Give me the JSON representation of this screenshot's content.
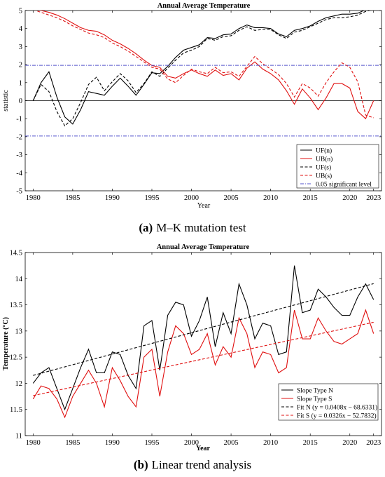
{
  "panel_a": {
    "caption_letter": "(a)",
    "caption_text": "M–K mutation test"
  },
  "panel_b": {
    "caption_letter": "(b)",
    "caption_text": "Linear trend analysis"
  },
  "chart_data": [
    {
      "type": "line",
      "title": "Annual Average Temperature",
      "xlabel": "Year",
      "ylabel": "statistic",
      "xlim": [
        1979,
        2024
      ],
      "ylim": [
        -5,
        5
      ],
      "xticks": [
        1980,
        1985,
        1990,
        1995,
        2000,
        2005,
        2010,
        2015,
        2020,
        2023
      ],
      "yticks": [
        -5,
        -4,
        -3,
        -2,
        -1,
        0,
        1,
        2,
        3,
        4,
        5
      ],
      "grid": false,
      "legend_position": "bottom-right",
      "x": [
        1980,
        1981,
        1982,
        1983,
        1984,
        1985,
        1986,
        1987,
        1988,
        1989,
        1990,
        1991,
        1992,
        1993,
        1994,
        1995,
        1996,
        1997,
        1998,
        1999,
        2000,
        2001,
        2002,
        2003,
        2004,
        2005,
        2006,
        2007,
        2008,
        2009,
        2010,
        2011,
        2012,
        2013,
        2014,
        2015,
        2016,
        2017,
        2018,
        2019,
        2020,
        2021,
        2022,
        2023
      ],
      "series": [
        {
          "name": "UF(n)",
          "color": "#000000",
          "dash": "solid",
          "values": [
            0,
            1.0,
            1.6,
            0.2,
            -0.9,
            -1.3,
            -0.5,
            0.5,
            0.4,
            0.3,
            0.8,
            1.25,
            0.8,
            0.3,
            0.9,
            1.55,
            1.5,
            1.9,
            2.4,
            2.8,
            2.95,
            3.1,
            3.5,
            3.45,
            3.65,
            3.7,
            4.0,
            4.2,
            4.05,
            4.05,
            4.0,
            3.7,
            3.55,
            3.9,
            4.0,
            4.15,
            4.4,
            4.6,
            4.7,
            4.8,
            4.8,
            4.85,
            5.05,
            5.1
          ]
        },
        {
          "name": "UB(n)",
          "color": "#e01010",
          "dash": "solid",
          "values": [
            5.1,
            5.0,
            4.9,
            4.75,
            4.55,
            4.3,
            4.05,
            3.9,
            3.85,
            3.65,
            3.35,
            3.15,
            2.9,
            2.6,
            2.25,
            1.95,
            1.85,
            1.35,
            1.25,
            1.5,
            1.7,
            1.5,
            1.35,
            1.7,
            1.4,
            1.5,
            1.15,
            1.8,
            2.15,
            1.75,
            1.5,
            1.15,
            0.55,
            -0.2,
            0.65,
            0.15,
            -0.5,
            0.15,
            0.95,
            0.95,
            0.7,
            -0.6,
            -1.0,
            0.0
          ]
        },
        {
          "name": "UF(s)",
          "color": "#000000",
          "dash": "dashed",
          "values": [
            0,
            0.9,
            0.5,
            -0.6,
            -1.4,
            -1.0,
            -0.1,
            0.9,
            1.3,
            0.55,
            1.05,
            1.5,
            1.1,
            0.45,
            0.95,
            1.6,
            1.35,
            1.8,
            2.25,
            2.65,
            2.8,
            3.0,
            3.45,
            3.35,
            3.55,
            3.6,
            3.9,
            4.1,
            3.9,
            3.95,
            3.95,
            3.65,
            3.45,
            3.8,
            3.9,
            4.1,
            4.3,
            4.5,
            4.6,
            4.6,
            4.65,
            4.75,
            4.95,
            5.05
          ]
        },
        {
          "name": "UB(s)",
          "color": "#e01010",
          "dash": "dashed",
          "values": [
            5.05,
            4.9,
            4.75,
            4.6,
            4.4,
            4.15,
            3.95,
            3.75,
            3.65,
            3.5,
            3.2,
            3.0,
            2.75,
            2.45,
            2.15,
            1.85,
            1.75,
            1.2,
            1.0,
            1.4,
            1.75,
            1.6,
            1.5,
            1.85,
            1.55,
            1.6,
            1.35,
            1.9,
            2.45,
            2.05,
            1.75,
            1.45,
            0.95,
            0.2,
            0.95,
            0.7,
            0.25,
            1.0,
            1.6,
            2.1,
            1.85,
            1.05,
            -0.8,
            -0.95
          ]
        },
        {
          "name": "0.05 significant level",
          "color": "#5555cc",
          "dash": "dashdot",
          "values_upper": 1.96,
          "values_lower": -1.96
        }
      ],
      "reference_line_y": 0
    },
    {
      "type": "line",
      "title": "Annual Average Temperature",
      "xlabel": "Year",
      "ylabel": "Temperature (°C)",
      "xlim": [
        1979,
        2024
      ],
      "ylim": [
        11,
        14.5
      ],
      "xticks": [
        1980,
        1985,
        1990,
        1995,
        2000,
        2005,
        2010,
        2015,
        2020,
        2023
      ],
      "yticks": [
        11,
        11.5,
        12,
        12.5,
        13,
        13.5,
        14,
        14.5
      ],
      "grid": false,
      "legend_position": "bottom-right",
      "x": [
        1980,
        1981,
        1982,
        1983,
        1984,
        1985,
        1986,
        1987,
        1988,
        1989,
        1990,
        1991,
        1992,
        1993,
        1994,
        1995,
        1996,
        1997,
        1998,
        1999,
        2000,
        2001,
        2002,
        2003,
        2004,
        2005,
        2006,
        2007,
        2008,
        2009,
        2010,
        2011,
        2012,
        2013,
        2014,
        2015,
        2016,
        2017,
        2018,
        2019,
        2020,
        2021,
        2022,
        2023
      ],
      "series": [
        {
          "name": "Slope Type N",
          "color": "#000000",
          "dash": "solid",
          "values": [
            12.0,
            12.2,
            12.3,
            11.9,
            11.5,
            11.9,
            12.3,
            12.65,
            12.2,
            12.2,
            12.6,
            12.55,
            12.15,
            11.9,
            13.1,
            13.2,
            12.25,
            13.3,
            13.55,
            13.5,
            12.9,
            13.2,
            13.65,
            12.7,
            13.35,
            12.95,
            13.9,
            13.5,
            12.85,
            13.15,
            13.1,
            12.55,
            12.6,
            14.25,
            13.35,
            13.4,
            13.8,
            13.65,
            13.45,
            13.3,
            13.3,
            13.65,
            13.9,
            13.6
          ]
        },
        {
          "name": "Slope Type S",
          "color": "#e01010",
          "dash": "solid",
          "values": [
            11.7,
            11.95,
            11.9,
            11.7,
            11.35,
            11.75,
            12.0,
            12.25,
            12.0,
            11.55,
            12.3,
            12.05,
            11.75,
            11.55,
            12.5,
            12.65,
            11.75,
            12.6,
            13.1,
            12.95,
            12.55,
            12.65,
            12.95,
            12.35,
            12.7,
            12.5,
            13.25,
            12.95,
            12.3,
            12.6,
            12.55,
            12.2,
            12.3,
            13.4,
            12.85,
            12.85,
            13.25,
            13.0,
            12.8,
            12.75,
            12.85,
            12.95,
            13.4,
            12.95
          ]
        },
        {
          "name": "Fit N (y = 0.0408x − 68.6331)",
          "color": "#000000",
          "dash": "dashed",
          "slope": 0.0408,
          "intercept": -68.6331
        },
        {
          "name": "Fit S (y = 0.0326x − 52.7832)",
          "color": "#e01010",
          "dash": "dashed",
          "slope": 0.0326,
          "intercept": -52.7832
        }
      ]
    }
  ]
}
